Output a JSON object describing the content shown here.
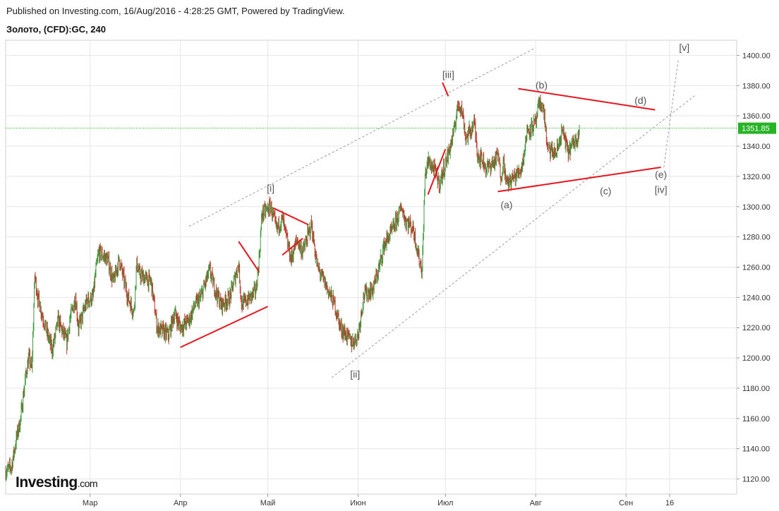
{
  "header": {
    "published": "Published on Investing.com, 16/Aug/2016 - 4:28:25 GMT, Powered by TradingView.",
    "symbol": "Золото, (CFD):GC, 240"
  },
  "logo": {
    "brand": "Investing",
    "suffix": ".com"
  },
  "colors": {
    "up": "#3c9a3c",
    "down": "#c0392b",
    "annotation": "#e8141e",
    "guide": "#9a9a9a",
    "current_line": "#26b326",
    "grid": "#e6e6e6",
    "axis_text": "#333333"
  },
  "chart_data": {
    "type": "candlestick",
    "x_axis": {
      "ticks": [
        "Мар",
        "Апр",
        "Май",
        "Июн",
        "Июл",
        "Авг",
        "Сен",
        "16"
      ],
      "tick_dates": [
        "2016-03-01",
        "2016-04-01",
        "2016-05-01",
        "2016-06-01",
        "2016-07-01",
        "2016-08-01",
        "2016-09-01",
        "2016-09-16"
      ],
      "range": [
        "2016-02-01",
        "2016-10-09"
      ]
    },
    "y_axis": {
      "ylim": [
        1110,
        1410
      ],
      "ticks": [
        1120,
        1140,
        1160,
        1180,
        1200,
        1220,
        1240,
        1260,
        1280,
        1300,
        1320,
        1340,
        1360,
        1380,
        1400
      ],
      "tick_labels": [
        "1120.00",
        "1140.00",
        "1160.00",
        "1180.00",
        "1200.00",
        "1220.00",
        "1240.00",
        "1260.00",
        "1280.00",
        "1300.00",
        "1320.00",
        "1340.00",
        "1360.00",
        "1380.00",
        "1400.00"
      ]
    },
    "grid": true,
    "current_price": {
      "value": 1351.85,
      "label": "1351.85"
    },
    "price_path": [
      [
        "2016-02-01",
        1125
      ],
      [
        "2016-02-03",
        1128
      ],
      [
        "2016-02-05",
        1150
      ],
      [
        "2016-02-06",
        1158
      ],
      [
        "2016-02-08",
        1190
      ],
      [
        "2016-02-09",
        1200
      ],
      [
        "2016-02-10",
        1192
      ],
      [
        "2016-02-11",
        1255
      ],
      [
        "2016-02-12",
        1240
      ],
      [
        "2016-02-15",
        1218
      ],
      [
        "2016-02-17",
        1205
      ],
      [
        "2016-02-19",
        1225
      ],
      [
        "2016-02-22",
        1210
      ],
      [
        "2016-02-23",
        1225
      ],
      [
        "2016-02-25",
        1240
      ],
      [
        "2016-02-26",
        1220
      ],
      [
        "2016-02-29",
        1238
      ],
      [
        "2016-03-02",
        1240
      ],
      [
        "2016-03-03",
        1258
      ],
      [
        "2016-03-04",
        1270
      ],
      [
        "2016-03-07",
        1265
      ],
      [
        "2016-03-09",
        1250
      ],
      [
        "2016-03-11",
        1265
      ],
      [
        "2016-03-14",
        1240
      ],
      [
        "2016-03-16",
        1230
      ],
      [
        "2016-03-17",
        1262
      ],
      [
        "2016-03-18",
        1255
      ],
      [
        "2016-03-22",
        1250
      ],
      [
        "2016-03-24",
        1220
      ],
      [
        "2016-03-28",
        1215
      ],
      [
        "2016-03-30",
        1230
      ],
      [
        "2016-04-01",
        1220
      ],
      [
        "2016-04-04",
        1225
      ],
      [
        "2016-04-06",
        1235
      ],
      [
        "2016-04-08",
        1240
      ],
      [
        "2016-04-11",
        1258
      ],
      [
        "2016-04-13",
        1245
      ],
      [
        "2016-04-15",
        1235
      ],
      [
        "2016-04-18",
        1240
      ],
      [
        "2016-04-20",
        1255
      ],
      [
        "2016-04-21",
        1262
      ],
      [
        "2016-04-22",
        1235
      ],
      [
        "2016-04-25",
        1240
      ],
      [
        "2016-04-27",
        1245
      ],
      [
        "2016-04-28",
        1265
      ],
      [
        "2016-04-29",
        1295
      ],
      [
        "2016-05-02",
        1300
      ],
      [
        "2016-05-04",
        1285
      ],
      [
        "2016-05-06",
        1292
      ],
      [
        "2016-05-09",
        1265
      ],
      [
        "2016-05-11",
        1278
      ],
      [
        "2016-05-13",
        1270
      ],
      [
        "2016-05-16",
        1288
      ],
      [
        "2016-05-18",
        1260
      ],
      [
        "2016-05-20",
        1252
      ],
      [
        "2016-05-24",
        1235
      ],
      [
        "2016-05-26",
        1220
      ],
      [
        "2016-05-30",
        1210
      ],
      [
        "2016-06-01",
        1215
      ],
      [
        "2016-06-03",
        1242
      ],
      [
        "2016-06-06",
        1245
      ],
      [
        "2016-06-08",
        1258
      ],
      [
        "2016-06-10",
        1275
      ],
      [
        "2016-06-13",
        1285
      ],
      [
        "2016-06-16",
        1300
      ],
      [
        "2016-06-17",
        1292
      ],
      [
        "2016-06-20",
        1285
      ],
      [
        "2016-06-22",
        1265
      ],
      [
        "2016-06-23",
        1258
      ],
      [
        "2016-06-24",
        1320
      ],
      [
        "2016-06-25",
        1330
      ],
      [
        "2016-06-27",
        1325
      ],
      [
        "2016-06-29",
        1315
      ],
      [
        "2016-06-30",
        1322
      ],
      [
        "2016-07-02",
        1335
      ],
      [
        "2016-07-04",
        1350
      ],
      [
        "2016-07-05",
        1365
      ],
      [
        "2016-07-06",
        1368
      ],
      [
        "2016-07-07",
        1360
      ],
      [
        "2016-07-08",
        1345
      ],
      [
        "2016-07-11",
        1355
      ],
      [
        "2016-07-12",
        1335
      ],
      [
        "2016-07-14",
        1330
      ],
      [
        "2016-07-15",
        1325
      ],
      [
        "2016-07-18",
        1330
      ],
      [
        "2016-07-19",
        1335
      ],
      [
        "2016-07-20",
        1320
      ],
      [
        "2016-07-21",
        1330
      ],
      [
        "2016-07-22",
        1315
      ],
      [
        "2016-07-25",
        1320
      ],
      [
        "2016-07-27",
        1325
      ],
      [
        "2016-07-28",
        1335
      ],
      [
        "2016-07-29",
        1350
      ],
      [
        "2016-08-01",
        1355
      ],
      [
        "2016-08-02",
        1366
      ],
      [
        "2016-08-03",
        1368
      ],
      [
        "2016-08-04",
        1360
      ],
      [
        "2016-08-05",
        1338
      ],
      [
        "2016-08-08",
        1335
      ],
      [
        "2016-08-09",
        1342
      ],
      [
        "2016-08-10",
        1350
      ],
      [
        "2016-08-11",
        1345
      ],
      [
        "2016-08-12",
        1336
      ],
      [
        "2016-08-15",
        1345
      ],
      [
        "2016-08-16",
        1351.85
      ]
    ],
    "trend_lines": [
      {
        "id": "i-channel-top",
        "style": "dashed",
        "from": [
          "2016-04-04",
          1287
        ],
        "to": [
          "2016-08-01",
          1405
        ]
      },
      {
        "id": "i-channel-bottom",
        "style": "dashed",
        "from": [
          "2016-05-23",
          1187
        ],
        "to": [
          "2016-09-25",
          1374
        ]
      },
      {
        "id": "v-target",
        "style": "dashed",
        "from": [
          "2016-09-14",
          1326
        ],
        "to": [
          "2016-09-19",
          1398
        ]
      },
      {
        "id": "red-1",
        "style": "solid",
        "from": [
          "2016-04-01",
          1207
        ],
        "to": [
          "2016-05-01",
          1234
        ]
      },
      {
        "id": "red-2",
        "style": "solid",
        "from": [
          "2016-04-21",
          1277
        ],
        "to": [
          "2016-04-28",
          1257
        ]
      },
      {
        "id": "red-3",
        "style": "solid",
        "from": [
          "2016-05-03",
          1299
        ],
        "to": [
          "2016-05-15",
          1288
        ]
      },
      {
        "id": "red-4",
        "style": "solid",
        "from": [
          "2016-05-06",
          1268
        ],
        "to": [
          "2016-05-13",
          1279
        ]
      },
      {
        "id": "red-5",
        "style": "solid",
        "from": [
          "2016-06-25",
          1308
        ],
        "to": [
          "2016-07-01",
          1338
        ]
      },
      {
        "id": "red-6",
        "style": "solid",
        "from": [
          "2016-06-30",
          1382
        ],
        "to": [
          "2016-07-02",
          1373
        ]
      },
      {
        "id": "red-7",
        "style": "solid",
        "from": [
          "2016-07-26",
          1378
        ],
        "to": [
          "2016-09-11",
          1364
        ]
      },
      {
        "id": "red-8",
        "style": "solid",
        "from": [
          "2016-07-19",
          1310
        ],
        "to": [
          "2016-09-13",
          1326
        ]
      }
    ],
    "annotations": [
      {
        "text": "[i]",
        "at": [
          "2016-05-02",
          1310
        ]
      },
      {
        "text": "[ii]",
        "at": [
          "2016-05-31",
          1187
        ]
      },
      {
        "text": "[iii]",
        "at": [
          "2016-07-02",
          1385
        ]
      },
      {
        "text": "[iv]",
        "at": [
          "2016-09-13",
          1309
        ]
      },
      {
        "text": "[v]",
        "at": [
          "2016-09-21",
          1403
        ]
      },
      {
        "text": "(a)",
        "at": [
          "2016-07-22",
          1299
        ]
      },
      {
        "text": "(b)",
        "at": [
          "2016-08-03",
          1378
        ]
      },
      {
        "text": "(c)",
        "at": [
          "2016-08-25",
          1308
        ]
      },
      {
        "text": "(d)",
        "at": [
          "2016-09-06",
          1368
        ]
      },
      {
        "text": "(e)",
        "at": [
          "2016-09-13",
          1319
        ]
      }
    ]
  }
}
